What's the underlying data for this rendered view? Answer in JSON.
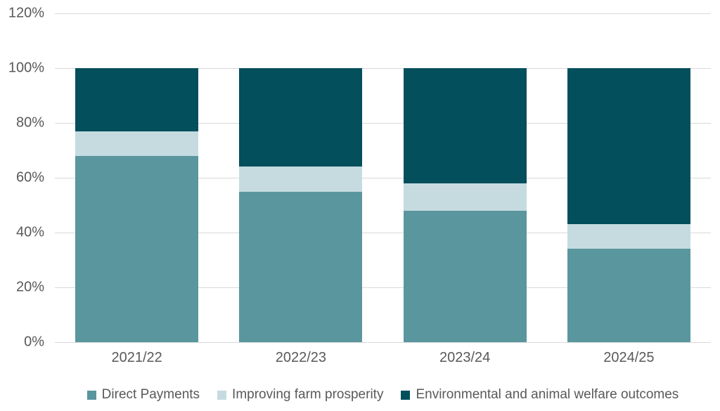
{
  "chart_data": {
    "type": "bar",
    "variant": "100-percent-stacked-column",
    "title": "",
    "xlabel": "",
    "ylabel": "",
    "categories": [
      "2021/22",
      "2022/23",
      "2023/24",
      "2024/25"
    ],
    "series": [
      {
        "name": "Direct Payments",
        "color": "#5A969E",
        "values": [
          68,
          55,
          48,
          34
        ]
      },
      {
        "name": "Improving farm prosperity",
        "color": "#C5DBE0",
        "values": [
          9,
          9,
          10,
          9
        ]
      },
      {
        "name": "Environmental and animal welfare outcomes",
        "color": "#034F5C",
        "values": [
          23,
          36,
          42,
          57
        ]
      }
    ],
    "y_axis": {
      "ticks": [
        "0%",
        "20%",
        "40%",
        "60%",
        "80%",
        "100%",
        "120%"
      ],
      "tick_values": [
        0,
        20,
        40,
        60,
        80,
        100,
        120
      ],
      "min": 0,
      "max": 120,
      "unit": "%"
    },
    "legend_position": "bottom",
    "grid": true,
    "colors": {
      "gridline": "#D9D9D9",
      "axis_text": "#595959",
      "background": "#FFFFFF"
    }
  }
}
